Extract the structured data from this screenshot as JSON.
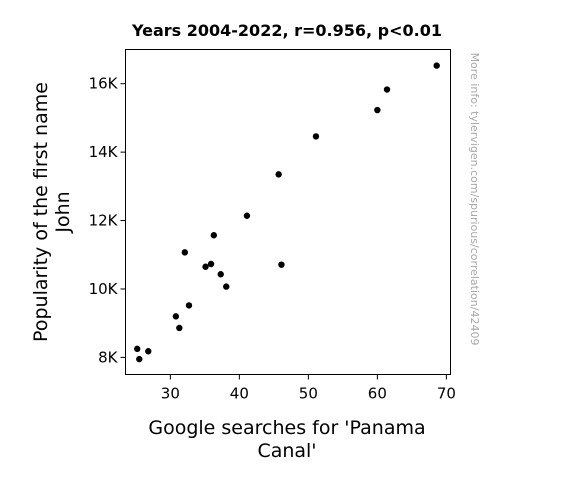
{
  "chart_data": {
    "type": "scatter",
    "title": "Years 2004-2022, r=0.956, p<0.01",
    "xlabel_lines": [
      "Google searches for 'Panama",
      "Canal'"
    ],
    "ylabel_lines": [
      "Popularity of the first name",
      "John"
    ],
    "side_note": "More info: tylervigen.com/spurious/correlation/42409",
    "xlim": [
      23.5,
      70.6
    ],
    "ylim": [
      7500,
      17000
    ],
    "x_ticks": [
      30,
      40,
      50,
      60,
      70
    ],
    "x_tick_labels": [
      "30",
      "40",
      "50",
      "60",
      "70"
    ],
    "y_ticks": [
      8000,
      10000,
      12000,
      14000,
      16000
    ],
    "y_tick_labels": [
      "8K",
      "10K",
      "12K",
      "14K",
      "16K"
    ],
    "grid": false,
    "legend": "none",
    "marker_color": "#000000",
    "points": [
      {
        "x": 25.2,
        "y": 8250
      },
      {
        "x": 25.5,
        "y": 7950
      },
      {
        "x": 26.8,
        "y": 8180
      },
      {
        "x": 30.8,
        "y": 9200
      },
      {
        "x": 31.3,
        "y": 8860
      },
      {
        "x": 32.1,
        "y": 11070
      },
      {
        "x": 32.7,
        "y": 9520
      },
      {
        "x": 35.1,
        "y": 10650
      },
      {
        "x": 35.9,
        "y": 10730
      },
      {
        "x": 36.3,
        "y": 11570
      },
      {
        "x": 37.3,
        "y": 10430
      },
      {
        "x": 38.1,
        "y": 10070
      },
      {
        "x": 41.1,
        "y": 12140
      },
      {
        "x": 45.7,
        "y": 13350
      },
      {
        "x": 46.1,
        "y": 10710
      },
      {
        "x": 51.1,
        "y": 14460
      },
      {
        "x": 60.0,
        "y": 15230
      },
      {
        "x": 61.4,
        "y": 15830
      },
      {
        "x": 68.6,
        "y": 16530
      }
    ]
  }
}
